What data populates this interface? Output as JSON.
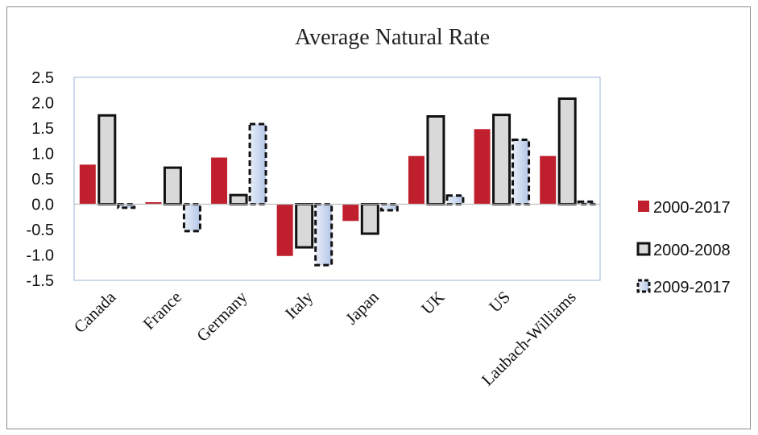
{
  "chart_data": {
    "type": "bar",
    "title": "Average Natural Rate",
    "xlabel": "",
    "ylabel": "",
    "categories": [
      "Canada",
      "France",
      "Germany",
      "Italy",
      "Japan",
      "UK",
      "US",
      "Laubach-Williams"
    ],
    "ylim": [
      -1.5,
      2.5
    ],
    "yticks": [
      "2.5",
      "2.0",
      "1.5",
      "1.0",
      "0.5",
      "0.0",
      "-0.5",
      "-1.0",
      "-1.5"
    ],
    "grid": false,
    "legend": "right",
    "series": [
      {
        "name": "2000-2017",
        "values": [
          0.78,
          0.04,
          0.92,
          -1.02,
          -0.33,
          0.95,
          1.48,
          0.95
        ],
        "color": "#c0202e"
      },
      {
        "name": "2000-2008",
        "values": [
          1.75,
          0.72,
          0.18,
          -0.85,
          -0.58,
          1.73,
          1.76,
          2.08
        ],
        "color": "#d9d9d9"
      },
      {
        "name": "2009-2017",
        "values": [
          -0.07,
          -0.53,
          1.58,
          -1.2,
          -0.12,
          0.17,
          1.27,
          0.05
        ],
        "color": "#b4c6e7"
      }
    ]
  }
}
